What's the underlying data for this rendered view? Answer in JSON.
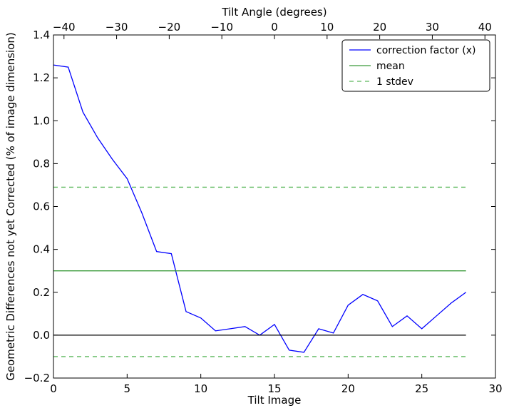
{
  "chart_data": {
    "type": "line",
    "title": "",
    "xlabel": "Tilt Image",
    "ylabel": "Geometric Differences not yet Corrected (% of image dimension)",
    "top_xlabel": "Tilt Angle (degrees)",
    "xlim": [
      0,
      30
    ],
    "ylim": [
      -0.2,
      1.4
    ],
    "top_xlim": [
      -42,
      42
    ],
    "xticks": [
      0,
      5,
      10,
      15,
      20,
      25,
      30
    ],
    "yticks": [
      -0.2,
      0.0,
      0.2,
      0.4,
      0.6,
      0.8,
      1.0,
      1.2,
      1.4
    ],
    "top_xticks": [
      -40,
      -30,
      -20,
      -10,
      0,
      10,
      20,
      30,
      40
    ],
    "xtick_labels": [
      "0",
      "5",
      "10",
      "15",
      "20",
      "25",
      "30"
    ],
    "ytick_labels": [
      "−0.2",
      "0.0",
      "0.2",
      "0.4",
      "0.6",
      "0.8",
      "1.0",
      "1.2",
      "1.4"
    ],
    "top_xtick_labels": [
      "−40",
      "−30",
      "−20",
      "−10",
      "0",
      "10",
      "20",
      "30",
      "40"
    ],
    "grid": false,
    "legend_position": "top-right",
    "series": [
      {
        "name": "correction factor (x)",
        "color": "#0000ff",
        "style": "solid",
        "x": [
          0,
          1,
          2,
          3,
          4,
          5,
          6,
          7,
          8,
          9,
          10,
          11,
          12,
          13,
          14,
          15,
          16,
          17,
          18,
          19,
          20,
          21,
          22,
          23,
          24,
          25,
          26,
          27,
          28
        ],
        "y": [
          1.26,
          1.25,
          1.04,
          0.92,
          0.82,
          0.73,
          0.57,
          0.39,
          0.38,
          0.11,
          0.08,
          0.02,
          0.03,
          0.04,
          0.0,
          0.05,
          -0.07,
          -0.08,
          0.03,
          0.01,
          0.14,
          0.19,
          0.16,
          0.04,
          0.09,
          0.03,
          0.09,
          0.15,
          0.2
        ]
      },
      {
        "name": "mean",
        "color": "#3a9a3a",
        "style": "solid",
        "x": [
          0,
          28
        ],
        "y": [
          0.3,
          0.3
        ]
      },
      {
        "name": "1 stdev",
        "color": "#5cb85c",
        "style": "dashed",
        "x": [
          0,
          28
        ],
        "y": [
          0.69,
          0.69
        ]
      },
      {
        "name": "",
        "color": "#5cb85c",
        "style": "dashed",
        "x": [
          0,
          28
        ],
        "y": [
          -0.1,
          -0.1
        ]
      },
      {
        "name": "",
        "color": "#000000",
        "style": "solid",
        "x": [
          0,
          28
        ],
        "y": [
          0.0,
          0.0
        ]
      }
    ],
    "legend": [
      {
        "label": "correction factor (x)",
        "color": "#0000ff",
        "style": "solid"
      },
      {
        "label": "mean",
        "color": "#3a9a3a",
        "style": "solid"
      },
      {
        "label": "1 stdev",
        "color": "#5cb85c",
        "style": "dashed"
      }
    ]
  }
}
